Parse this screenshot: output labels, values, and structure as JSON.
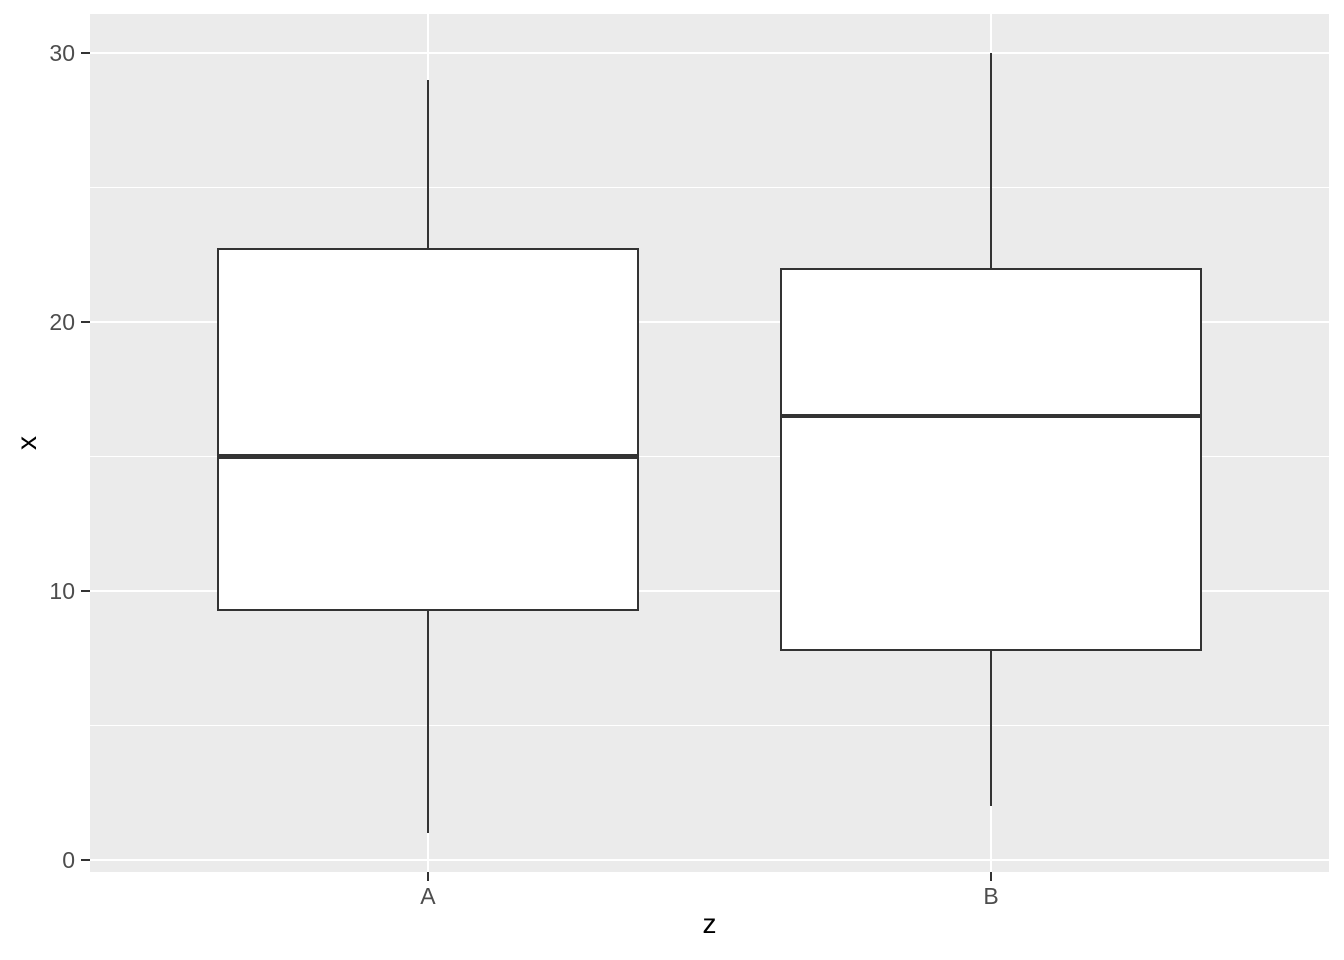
{
  "chart_data": {
    "type": "boxplot",
    "title": "",
    "xlabel": "z",
    "ylabel": "x",
    "categories": [
      "A",
      "B"
    ],
    "series": [
      {
        "name": "A",
        "whisker_min": 1,
        "q1": 9.25,
        "median": 15,
        "q3": 22.75,
        "whisker_max": 29,
        "outliers": []
      },
      {
        "name": "B",
        "whisker_min": 2,
        "q1": 7.75,
        "median": 16.5,
        "q3": 22,
        "whisker_max": 30,
        "outliers": []
      }
    ],
    "y_axis": {
      "ticks": [
        0,
        10,
        20,
        30
      ],
      "tick_labels": [
        "0",
        "10",
        "20",
        "30"
      ],
      "minor_ticks": [
        5,
        15,
        25
      ],
      "ylim": [
        -0.45,
        31.45
      ]
    },
    "x_axis": {
      "tick_labels": [
        "A",
        "B"
      ]
    },
    "grid": {
      "major": true,
      "minor": true
    },
    "legend": "none",
    "colors": {
      "outer_bg": "#FFFFFF",
      "panel_bg": "#EBEBEB",
      "grid": "#FFFFFF",
      "box_stroke": "#333333",
      "box_fill": "#FFFFFF",
      "tick_mark": "#333333",
      "tick_label": "#4D4D4D",
      "axis_title": "#000000"
    }
  }
}
